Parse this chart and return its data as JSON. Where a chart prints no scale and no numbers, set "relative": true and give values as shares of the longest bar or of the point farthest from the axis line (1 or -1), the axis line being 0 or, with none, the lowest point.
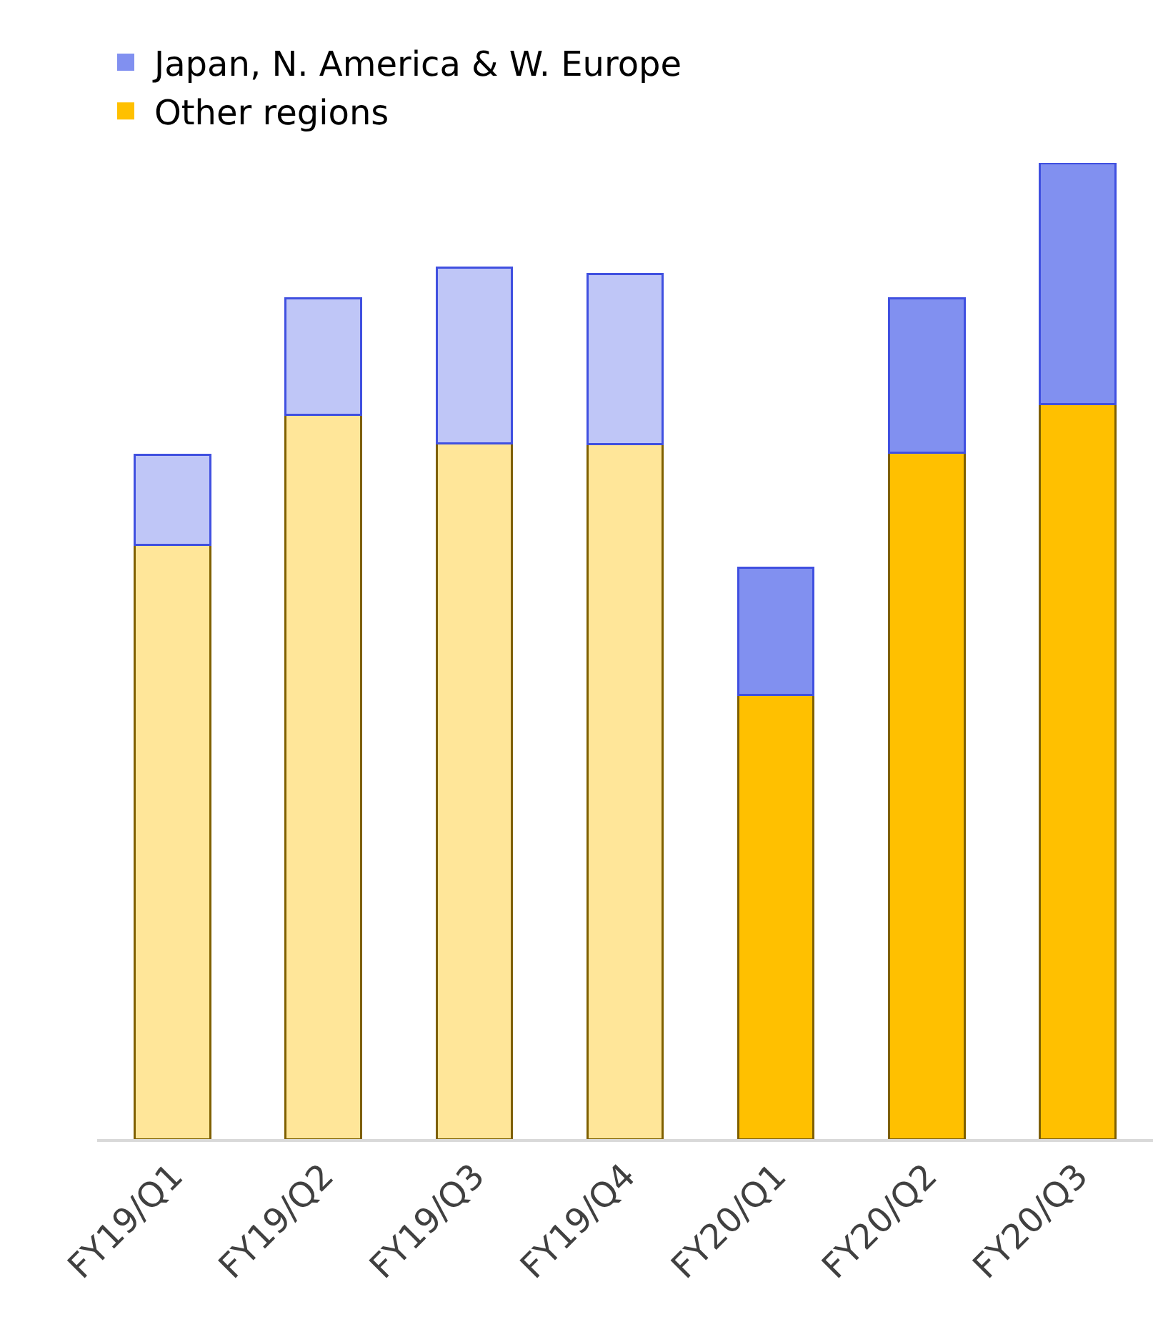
{
  "chart_data": {
    "type": "bar",
    "stacked": true,
    "relative": true,
    "legend": "top left",
    "grid": false,
    "categories": [
      "FY19/Q1",
      "FY19/Q2",
      "FY19/Q3",
      "FY19/Q4",
      "FY20/Q1",
      "FY20/Q2",
      "FY20/Q3"
    ],
    "series": [
      {
        "name": "Other regions",
        "color": "#ffc000",
        "colors": [
          "#ffe699",
          "#ffe699",
          "#ffe699",
          "#ffe699",
          "#ffc000",
          "#ffc000",
          "#ffc000"
        ],
        "values": [
          0.609,
          0.742,
          0.713,
          0.712,
          0.455,
          0.703,
          0.753
        ]
      },
      {
        "name": "Japan, N. America & W. Europe",
        "color": "#8190f0",
        "colors": [
          "#bfc6f7",
          "#bfc6f7",
          "#bfc6f7",
          "#bfc6f7",
          "#8190f0",
          "#8190f0",
          "#8190f0"
        ],
        "values": [
          0.092,
          0.119,
          0.18,
          0.174,
          0.13,
          0.158,
          0.247
        ]
      }
    ]
  }
}
